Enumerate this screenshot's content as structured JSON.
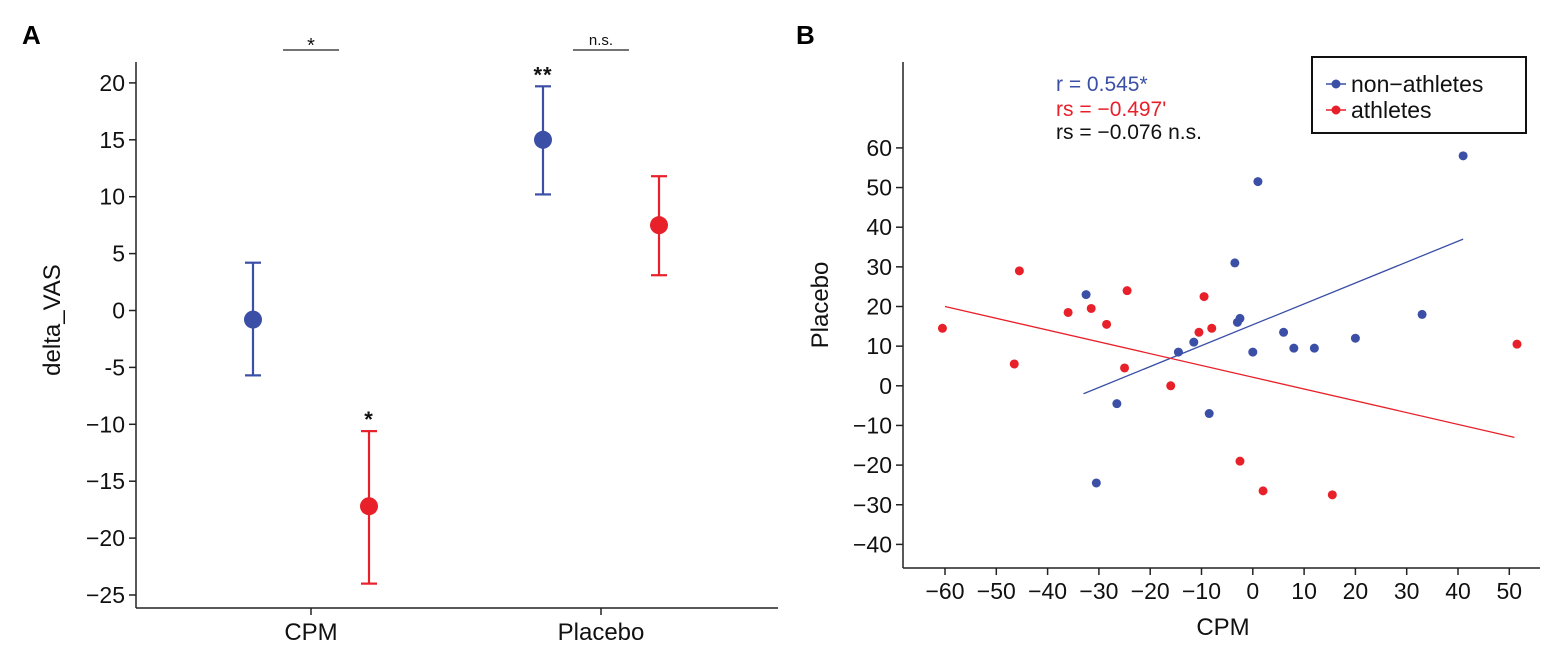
{
  "colors": {
    "non_athletes": "#3b4fa6",
    "athletes": "#e8202a",
    "axis": "#222222",
    "text": "#111111"
  },
  "chart_data": [
    {
      "panel_label": "A",
      "type": "scatter",
      "subtype": "point-with-errorbars",
      "xlabel": "",
      "ylabel": "delta_VAS",
      "categories": [
        "CPM",
        "Placebo"
      ],
      "ylim": [
        -26,
        22
      ],
      "yticks": [
        20,
        15,
        10,
        5,
        0,
        -5,
        -10,
        -15,
        -20,
        -25
      ],
      "ytick_labels": [
        "20",
        "15",
        "10",
        "5",
        "0",
        "-5",
        "−10",
        "−15",
        "−20",
        "−25"
      ],
      "series": [
        {
          "name": "non-athletes",
          "color": "#3b4fa6",
          "points": [
            {
              "category": "CPM",
              "offset": -0.25,
              "mean": -0.8,
              "low": -5.7,
              "high": 4.2,
              "annotation": ""
            },
            {
              "category": "Placebo",
              "offset": -0.25,
              "mean": 15.0,
              "low": 10.2,
              "high": 19.7,
              "annotation": "**"
            }
          ]
        },
        {
          "name": "athletes",
          "color": "#e8202a",
          "points": [
            {
              "category": "CPM",
              "offset": 0.25,
              "mean": -17.2,
              "low": -24.0,
              "high": -10.6,
              "annotation": "*"
            },
            {
              "category": "Placebo",
              "offset": 0.25,
              "mean": 7.5,
              "low": 3.1,
              "high": 11.8,
              "annotation": ""
            }
          ]
        }
      ],
      "comparisons": [
        {
          "category": "CPM",
          "label": "*"
        },
        {
          "category": "Placebo",
          "label": "n.s."
        }
      ]
    },
    {
      "panel_label": "B",
      "type": "scatter",
      "xlabel": "CPM",
      "ylabel": "Placebo",
      "xlim": [
        -65,
        55
      ],
      "ylim": [
        -46,
        68
      ],
      "xticks": [
        -60,
        -50,
        -40,
        -30,
        -20,
        -10,
        0,
        10,
        20,
        30,
        40,
        50
      ],
      "xtick_labels": [
        "−60",
        "−50",
        "−40",
        "−30",
        "−20",
        "−10",
        "0",
        "10",
        "20",
        "30",
        "40",
        "50"
      ],
      "yticks": [
        60,
        50,
        40,
        30,
        20,
        10,
        0,
        -10,
        -20,
        -30,
        -40
      ],
      "ytick_labels": [
        "60",
        "50",
        "40",
        "30",
        "20",
        "10",
        "0",
        "−10",
        "−20",
        "−30",
        "−40"
      ],
      "legend": {
        "position": "top-right",
        "entries": [
          {
            "label": "non−athletes",
            "color": "#3b4fa6"
          },
          {
            "label": "athletes",
            "color": "#e8202a"
          }
        ]
      },
      "stats": [
        {
          "text": "r = 0.545*",
          "color": "#3b4fa6"
        },
        {
          "text": "rs = −0.497'",
          "color": "#e8202a"
        },
        {
          "text": "rs = −0.076 n.s.",
          "color": "#111111"
        }
      ],
      "series": [
        {
          "name": "non-athletes",
          "color": "#3b4fa6",
          "x": [
            -32.5,
            -30.5,
            -26.5,
            -14.5,
            -11.5,
            -8.5,
            -3.5,
            -3,
            -2.5,
            0,
            1,
            6,
            8,
            12,
            20,
            33,
            41
          ],
          "y": [
            23,
            -24.5,
            -4.5,
            8.5,
            11,
            -7,
            31,
            16,
            17,
            8.5,
            51.5,
            13.5,
            9.5,
            9.5,
            12,
            18,
            58
          ],
          "fit": {
            "x": [
              -33,
              41
            ],
            "y": [
              -2,
              37
            ]
          }
        },
        {
          "name": "athletes",
          "color": "#e8202a",
          "x": [
            -60.5,
            -46.5,
            -45.5,
            -36,
            -31.5,
            -28.5,
            -25,
            -24.5,
            -16,
            -10.5,
            -9.5,
            -8,
            -2.5,
            2,
            15.5,
            51.5
          ],
          "y": [
            14.5,
            5.5,
            29,
            18.5,
            19.5,
            15.5,
            4.5,
            24,
            0,
            13.5,
            22.5,
            14.5,
            -19,
            -26.5,
            -27.5,
            10.5
          ],
          "fit": {
            "x": [
              -60,
              51
            ],
            "y": [
              20,
              -13
            ]
          }
        }
      ]
    }
  ]
}
